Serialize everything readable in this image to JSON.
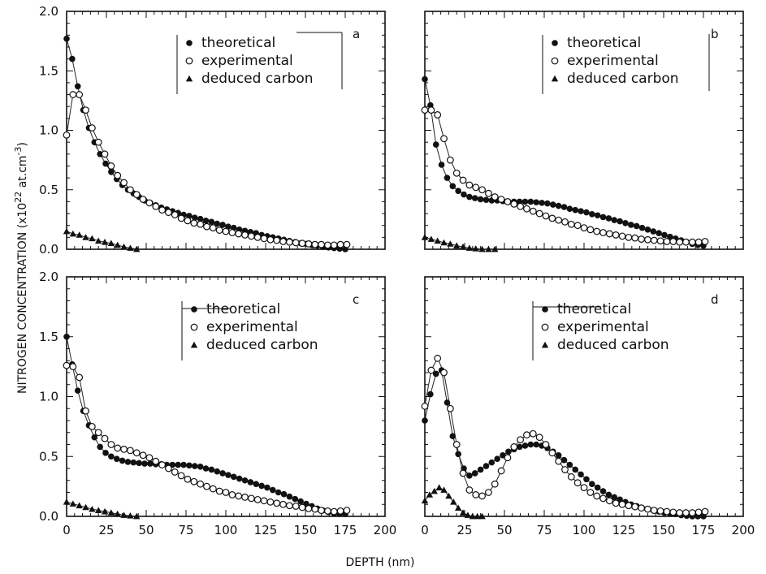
{
  "chart_data": {
    "type": "scatter",
    "xlabel": "DEPTH (nm)",
    "ylabel": "NITROGEN CONCENTRATION (x10",
    "ylabel_sup1": "22",
    "ylabel_mid": " at.cm",
    "ylabel_sup2": "-3",
    "ylabel_end": ")",
    "xlim": [
      0,
      200
    ],
    "ylim": [
      0,
      2.0
    ],
    "x_ticks": [
      "0",
      "25",
      "50",
      "75",
      "100",
      "125",
      "150",
      "175",
      "200"
    ],
    "y_ticks": [
      "0.0",
      "0.5",
      "1.0",
      "1.5",
      "2.0"
    ],
    "legend": [
      "theoretical",
      "experimental",
      "deduced carbon"
    ],
    "panels": [
      {
        "label": "a",
        "series": [
          {
            "name": "theoretical",
            "marker": "filled-circle",
            "x": [
              0,
              3.5,
              7,
              10.5,
              14,
              17.5,
              21,
              24.5,
              28,
              31.5,
              35,
              38.5,
              42,
              45.5,
              49,
              52.5,
              56,
              59.5,
              63,
              66.5,
              70,
              73.5,
              77,
              80.5,
              84,
              87.5,
              91,
              94.5,
              98,
              101.5,
              105,
              108.5,
              112,
              115.5,
              119,
              122.5,
              126,
              129.5,
              133,
              136.5,
              140,
              143.5,
              147,
              150.5,
              154,
              157.5,
              161,
              164.5,
              168,
              171.5,
              175
            ],
            "y": [
              1.77,
              1.6,
              1.37,
              1.17,
              1.02,
              0.9,
              0.8,
              0.72,
              0.65,
              0.59,
              0.54,
              0.5,
              0.47,
              0.44,
              0.41,
              0.39,
              0.37,
              0.35,
              0.335,
              0.32,
              0.305,
              0.29,
              0.28,
              0.265,
              0.255,
              0.24,
              0.23,
              0.215,
              0.205,
              0.19,
              0.18,
              0.165,
              0.155,
              0.145,
              0.135,
              0.12,
              0.11,
              0.1,
              0.09,
              0.08,
              0.07,
              0.06,
              0.05,
              0.045,
              0.035,
              0.03,
              0.02,
              0.015,
              0.01,
              0.005,
              0.0
            ]
          },
          {
            "name": "experimental",
            "marker": "open-circle",
            "x": [
              0,
              4,
              8,
              12,
              16,
              20,
              24,
              28,
              32,
              36,
              40,
              44,
              48,
              52,
              56,
              60,
              64,
              68,
              72,
              76,
              80,
              84,
              88,
              92,
              96,
              100,
              104,
              108,
              112,
              116,
              120,
              124,
              128,
              132,
              136,
              140,
              144,
              148,
              152,
              156,
              160,
              164,
              168,
              172,
              176
            ],
            "y": [
              0.96,
              1.3,
              1.3,
              1.17,
              1.02,
              0.9,
              0.8,
              0.7,
              0.62,
              0.56,
              0.5,
              0.46,
              0.42,
              0.39,
              0.36,
              0.33,
              0.31,
              0.29,
              0.26,
              0.24,
              0.22,
              0.21,
              0.19,
              0.18,
              0.16,
              0.15,
              0.14,
              0.13,
              0.12,
              0.11,
              0.1,
              0.09,
              0.08,
              0.075,
              0.065,
              0.06,
              0.055,
              0.05,
              0.045,
              0.04,
              0.04,
              0.035,
              0.035,
              0.04,
              0.04
            ]
          },
          {
            "name": "deduced carbon",
            "marker": "filled-triangle",
            "x": [
              0,
              4,
              8,
              12,
              16,
              20,
              24,
              28,
              32,
              36,
              40,
              44
            ],
            "y": [
              0.15,
              0.13,
              0.12,
              0.1,
              0.09,
              0.07,
              0.06,
              0.05,
              0.035,
              0.02,
              0.01,
              0.0
            ]
          }
        ]
      },
      {
        "label": "b",
        "series": [
          {
            "name": "theoretical",
            "marker": "filled-circle",
            "x": [
              0,
              3.5,
              7,
              10.5,
              14,
              17.5,
              21,
              24.5,
              28,
              31.5,
              35,
              38.5,
              42,
              45.5,
              49,
              52.5,
              56,
              59.5,
              63,
              66.5,
              70,
              73.5,
              77,
              80.5,
              84,
              87.5,
              91,
              94.5,
              98,
              101.5,
              105,
              108.5,
              112,
              115.5,
              119,
              122.5,
              126,
              129.5,
              133,
              136.5,
              140,
              143.5,
              147,
              150.5,
              154,
              157.5,
              161,
              164.5,
              168,
              171.5,
              175
            ],
            "y": [
              1.43,
              1.21,
              0.88,
              0.71,
              0.6,
              0.53,
              0.49,
              0.46,
              0.44,
              0.43,
              0.42,
              0.415,
              0.41,
              0.41,
              0.405,
              0.4,
              0.4,
              0.4,
              0.4,
              0.4,
              0.395,
              0.39,
              0.385,
              0.375,
              0.365,
              0.355,
              0.34,
              0.33,
              0.32,
              0.31,
              0.295,
              0.285,
              0.27,
              0.26,
              0.245,
              0.235,
              0.22,
              0.205,
              0.195,
              0.18,
              0.165,
              0.15,
              0.135,
              0.12,
              0.105,
              0.09,
              0.075,
              0.06,
              0.045,
              0.035,
              0.03
            ]
          },
          {
            "name": "experimental",
            "marker": "open-circle",
            "x": [
              0,
              4,
              8,
              12,
              16,
              20,
              24,
              28,
              32,
              36,
              40,
              44,
              48,
              52,
              56,
              60,
              64,
              68,
              72,
              76,
              80,
              84,
              88,
              92,
              96,
              100,
              104,
              108,
              112,
              116,
              120,
              124,
              128,
              132,
              136,
              140,
              144,
              148,
              152,
              156,
              160,
              164,
              168,
              172,
              176
            ],
            "y": [
              1.17,
              1.17,
              1.13,
              0.93,
              0.75,
              0.64,
              0.58,
              0.54,
              0.52,
              0.5,
              0.47,
              0.44,
              0.42,
              0.4,
              0.38,
              0.36,
              0.34,
              0.32,
              0.3,
              0.28,
              0.26,
              0.245,
              0.23,
              0.21,
              0.2,
              0.18,
              0.165,
              0.15,
              0.14,
              0.13,
              0.12,
              0.11,
              0.1,
              0.095,
              0.085,
              0.08,
              0.075,
              0.07,
              0.065,
              0.065,
              0.06,
              0.06,
              0.06,
              0.06,
              0.065
            ]
          },
          {
            "name": "deduced carbon",
            "marker": "filled-triangle",
            "x": [
              0,
              4,
              8,
              12,
              16,
              20,
              24,
              28,
              32,
              36,
              40,
              44
            ],
            "y": [
              0.1,
              0.085,
              0.07,
              0.055,
              0.045,
              0.03,
              0.02,
              0.01,
              0.005,
              0.0,
              0.0,
              0.0
            ]
          }
        ]
      },
      {
        "label": "c",
        "series": [
          {
            "name": "theoretical",
            "marker": "filled-circle",
            "x": [
              0,
              3.5,
              7,
              10.5,
              14,
              17.5,
              21,
              24.5,
              28,
              31.5,
              35,
              38.5,
              42,
              45.5,
              49,
              52.5,
              56,
              59.5,
              63,
              66.5,
              70,
              73.5,
              77,
              80.5,
              84,
              87.5,
              91,
              94.5,
              98,
              101.5,
              105,
              108.5,
              112,
              115.5,
              119,
              122.5,
              126,
              129.5,
              133,
              136.5,
              140,
              143.5,
              147,
              150.5,
              154,
              157.5,
              161,
              164.5,
              168,
              171.5,
              175
            ],
            "y": [
              1.5,
              1.27,
              1.05,
              0.88,
              0.76,
              0.66,
              0.58,
              0.53,
              0.5,
              0.48,
              0.465,
              0.455,
              0.45,
              0.445,
              0.44,
              0.44,
              0.435,
              0.435,
              0.43,
              0.43,
              0.43,
              0.43,
              0.425,
              0.42,
              0.415,
              0.4,
              0.39,
              0.375,
              0.36,
              0.345,
              0.33,
              0.315,
              0.3,
              0.285,
              0.27,
              0.255,
              0.24,
              0.22,
              0.2,
              0.185,
              0.165,
              0.145,
              0.125,
              0.105,
              0.085,
              0.065,
              0.05,
              0.035,
              0.025,
              0.02,
              0.02
            ]
          },
          {
            "name": "experimental",
            "marker": "open-circle",
            "x": [
              0,
              4,
              8,
              12,
              16,
              20,
              24,
              28,
              32,
              36,
              40,
              44,
              48,
              52,
              56,
              60,
              64,
              68,
              72,
              76,
              80,
              84,
              88,
              92,
              96,
              100,
              104,
              108,
              112,
              116,
              120,
              124,
              128,
              132,
              136,
              140,
              144,
              148,
              152,
              156,
              160,
              164,
              168,
              172,
              176
            ],
            "y": [
              1.26,
              1.25,
              1.16,
              0.88,
              0.75,
              0.7,
              0.65,
              0.6,
              0.57,
              0.56,
              0.55,
              0.53,
              0.51,
              0.49,
              0.46,
              0.43,
              0.4,
              0.37,
              0.34,
              0.31,
              0.29,
              0.27,
              0.25,
              0.23,
              0.21,
              0.2,
              0.18,
              0.17,
              0.16,
              0.15,
              0.14,
              0.13,
              0.12,
              0.11,
              0.1,
              0.09,
              0.085,
              0.075,
              0.065,
              0.06,
              0.05,
              0.045,
              0.04,
              0.045,
              0.05
            ]
          },
          {
            "name": "deduced carbon",
            "marker": "filled-triangle",
            "x": [
              0,
              4,
              8,
              12,
              16,
              20,
              24,
              28,
              32,
              36,
              40,
              44
            ],
            "y": [
              0.12,
              0.105,
              0.09,
              0.075,
              0.06,
              0.05,
              0.04,
              0.03,
              0.02,
              0.01,
              0.005,
              0.0
            ]
          }
        ]
      },
      {
        "label": "d",
        "series": [
          {
            "name": "theoretical",
            "marker": "filled-circle",
            "x": [
              0,
              3.5,
              7,
              10.5,
              14,
              17.5,
              21,
              24.5,
              28,
              31.5,
              35,
              38.5,
              42,
              45.5,
              49,
              52.5,
              56,
              59.5,
              63,
              66.5,
              70,
              73.5,
              77,
              80.5,
              84,
              87.5,
              91,
              94.5,
              98,
              101.5,
              105,
              108.5,
              112,
              115.5,
              119,
              122.5,
              126,
              129.5,
              133,
              136.5,
              140,
              143.5,
              147,
              150.5,
              154,
              157.5,
              161,
              164.5,
              168,
              171.5,
              175
            ],
            "y": [
              0.8,
              1.02,
              1.19,
              1.22,
              0.95,
              0.67,
              0.52,
              0.4,
              0.34,
              0.36,
              0.39,
              0.42,
              0.45,
              0.48,
              0.51,
              0.54,
              0.56,
              0.58,
              0.59,
              0.6,
              0.6,
              0.59,
              0.57,
              0.54,
              0.51,
              0.47,
              0.43,
              0.39,
              0.35,
              0.31,
              0.27,
              0.24,
              0.21,
              0.18,
              0.16,
              0.14,
              0.12,
              0.1,
              0.085,
              0.07,
              0.06,
              0.05,
              0.04,
              0.03,
              0.025,
              0.02,
              0.01,
              0.005,
              0.0,
              0.0,
              0.0
            ]
          },
          {
            "name": "experimental",
            "marker": "open-circle",
            "x": [
              0,
              4,
              8,
              12,
              16,
              20,
              24,
              28,
              32,
              36,
              40,
              44,
              48,
              52,
              56,
              60,
              64,
              68,
              72,
              76,
              80,
              84,
              88,
              92,
              96,
              100,
              104,
              108,
              112,
              116,
              120,
              124,
              128,
              132,
              136,
              140,
              144,
              148,
              152,
              156,
              160,
              164,
              168,
              172,
              176
            ],
            "y": [
              0.92,
              1.22,
              1.32,
              1.2,
              0.9,
              0.6,
              0.36,
              0.22,
              0.18,
              0.17,
              0.2,
              0.27,
              0.38,
              0.49,
              0.58,
              0.64,
              0.68,
              0.69,
              0.66,
              0.6,
              0.53,
              0.46,
              0.39,
              0.33,
              0.28,
              0.24,
              0.2,
              0.17,
              0.15,
              0.13,
              0.11,
              0.1,
              0.09,
              0.08,
              0.07,
              0.06,
              0.05,
              0.045,
              0.04,
              0.035,
              0.03,
              0.03,
              0.03,
              0.035,
              0.04
            ]
          },
          {
            "name": "deduced carbon",
            "marker": "filled-triangle",
            "x": [
              0,
              3,
              6,
              9,
              12,
              15,
              18,
              21,
              24,
              27,
              30,
              33,
              36
            ],
            "y": [
              0.13,
              0.18,
              0.21,
              0.24,
              0.22,
              0.17,
              0.12,
              0.07,
              0.03,
              0.01,
              0.0,
              0.0,
              0.0
            ]
          }
        ]
      }
    ]
  }
}
